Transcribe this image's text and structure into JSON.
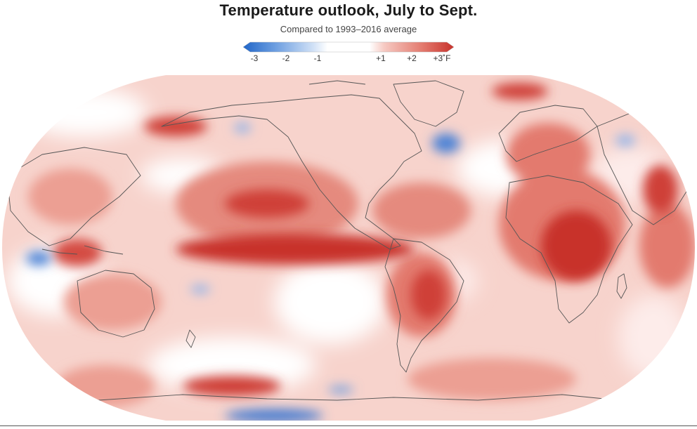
{
  "title": "Temperature outlook, July to Sept.",
  "subtitle": "Compared to 1993–2016 average",
  "legend": {
    "ticks": [
      "-3",
      "-2",
      "-1",
      "+1",
      "+2",
      "+3˚F"
    ],
    "tick_values": [
      -3,
      -2,
      -1,
      1,
      2,
      3
    ],
    "range": [
      -3,
      3
    ],
    "colors": {
      "cold_strong": "#2166c8",
      "cold_mid": "#6b9de0",
      "cold_light": "#bcd3f2",
      "neutral": "#ffffff",
      "warm_light": "#f6c9c2",
      "warm_mid": "#e37a6e",
      "warm_strong": "#c8322c"
    }
  },
  "map": {
    "projection": "robinson-like",
    "ocean_base_color": "#f7d3cc",
    "coastline_color": "#555555",
    "anomaly_regions": [
      {
        "name": "eastern-pacific-el-nino",
        "anomaly": 3
      },
      {
        "name": "north-pacific",
        "anomaly": 2
      },
      {
        "name": "africa",
        "anomaly": 2.5
      },
      {
        "name": "europe",
        "anomaly": 2
      },
      {
        "name": "south-america",
        "anomaly": 2
      },
      {
        "name": "southern-ocean-band",
        "anomaly": 2
      },
      {
        "name": "north-atlantic-cold-spot",
        "anomaly": -2
      },
      {
        "name": "indonesia-cold-spot",
        "anomaly": -2
      },
      {
        "name": "alaska-cold-spot",
        "anomaly": -1.5
      },
      {
        "name": "antarctic-coast-cold",
        "anomaly": -2
      }
    ]
  }
}
